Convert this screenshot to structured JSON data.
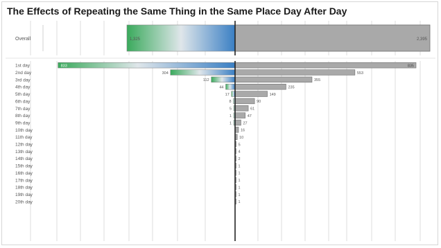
{
  "title": "The Effects of Repeating the Same Thing in the Same Place Day After Day",
  "colors": {
    "green": "#3aaa5c",
    "light": "#dfe6ea",
    "blue": "#3a7fc4",
    "gray": "#a9a9a9",
    "grid": "#dedede",
    "axis": "#222222"
  },
  "chart_data": [
    {
      "type": "bar",
      "subtype": "diverging-horizontal",
      "categories": [
        "Overall"
      ],
      "series": [
        {
          "values": [
            1325
          ],
          "labels": [
            "1,325"
          ]
        },
        {
          "values": [
            2395
          ],
          "labels": [
            "2,395"
          ]
        }
      ],
      "xlim": [
        -1325,
        2395
      ]
    },
    {
      "type": "bar",
      "subtype": "diverging-horizontal",
      "categories": [
        "1st day",
        "2nd day",
        "3rd day",
        "4th day",
        "5th day",
        "6th day",
        "7th day",
        "8th day",
        "9th day",
        "10th day",
        "11th day",
        "12th day",
        "13th day",
        "14th day",
        "15th day",
        "16th day",
        "17th day",
        "18th day",
        "19th day",
        "20th day"
      ],
      "series": [
        {
          "values": [
            833,
            304,
            112,
            44,
            17,
            8,
            5,
            1,
            1,
            null,
            null,
            null,
            null,
            null,
            null,
            null,
            null,
            null,
            null,
            null
          ],
          "labels": [
            "833",
            "304",
            "112",
            "44",
            "17",
            "8",
            "5",
            "1",
            "1",
            "",
            "",
            "",
            "",
            "",
            "",
            "",
            "",
            "",
            "",
            ""
          ]
        },
        {
          "values": [
            835,
            553,
            355,
            235,
            149,
            90,
            61,
            47,
            27,
            16,
            10,
            5,
            4,
            2,
            1,
            1,
            1,
            1,
            1,
            1
          ],
          "labels": [
            "835",
            "553",
            "355",
            "235",
            "149",
            "90",
            "61",
            "47",
            "27",
            "16",
            "10",
            "5",
            "4",
            "2",
            "1",
            "1",
            "1",
            "1",
            "1",
            "1"
          ]
        }
      ],
      "xlim": [
        -835,
        835
      ]
    }
  ]
}
